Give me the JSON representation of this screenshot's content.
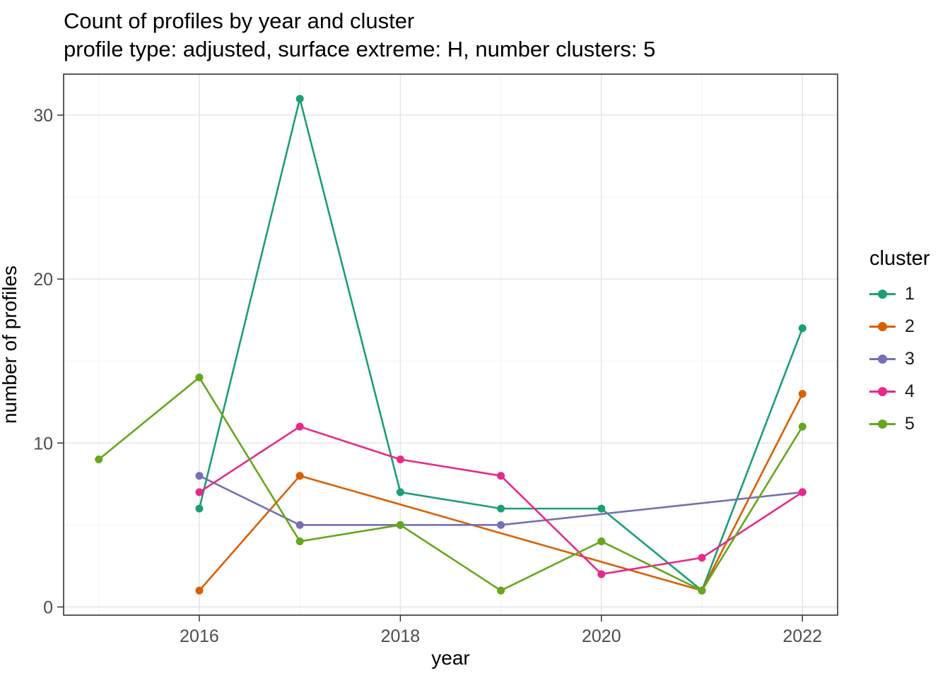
{
  "title": "Count of profiles by year and cluster",
  "subtitle": "profile type: adjusted, surface extreme: H, number clusters: 5",
  "chart_data": {
    "type": "line",
    "title": "Count of profiles by year and cluster",
    "subtitle": "profile type: adjusted, surface extreme: H, number clusters: 5",
    "xlabel": "year",
    "ylabel": "number of profiles",
    "legend_title": "cluster",
    "legend_position": "right",
    "grid": true,
    "x_ticks": [
      2016,
      2018,
      2020,
      2022
    ],
    "x_minor_ticks": [
      2015,
      2017,
      2019,
      2021
    ],
    "y_ticks": [
      0,
      10,
      20,
      30
    ],
    "y_minor_ticks": [
      5,
      15,
      25
    ],
    "x_domain": [
      2014.65,
      2022.35
    ],
    "y_domain": [
      -0.5,
      32.5
    ],
    "series": [
      {
        "name": "1",
        "color": "#1B9E77",
        "points": [
          [
            2016,
            6
          ],
          [
            2017,
            31
          ],
          [
            2018,
            7
          ],
          [
            2019,
            6
          ],
          [
            2020,
            6
          ],
          [
            2021,
            1
          ],
          [
            2022,
            17
          ]
        ]
      },
      {
        "name": "2",
        "color": "#D95F02",
        "points": [
          [
            2016,
            1
          ],
          [
            2017,
            8
          ],
          [
            2021,
            1
          ],
          [
            2022,
            13
          ]
        ]
      },
      {
        "name": "3",
        "color": "#7570B3",
        "points": [
          [
            2016,
            8
          ],
          [
            2017,
            5
          ],
          [
            2018,
            5
          ],
          [
            2019,
            5
          ],
          [
            2022,
            7
          ]
        ]
      },
      {
        "name": "4",
        "color": "#E7298A",
        "points": [
          [
            2016,
            7
          ],
          [
            2017,
            11
          ],
          [
            2018,
            9
          ],
          [
            2019,
            8
          ],
          [
            2020,
            2
          ],
          [
            2021,
            3
          ],
          [
            2022,
            7
          ]
        ]
      },
      {
        "name": "5",
        "color": "#66A61E",
        "points": [
          [
            2015,
            9
          ],
          [
            2016,
            14
          ],
          [
            2017,
            4
          ],
          [
            2018,
            5
          ],
          [
            2019,
            1
          ],
          [
            2020,
            4
          ],
          [
            2021,
            1
          ],
          [
            2022,
            11
          ]
        ]
      }
    ],
    "style": {
      "panel_background": "#FFFFFF",
      "panel_border": "#333333",
      "grid_major_color": "#E4E4E4",
      "grid_minor_color": "#F0F0F0",
      "tick_color": "#333333",
      "tick_label_color": "#4D4D4D"
    }
  }
}
